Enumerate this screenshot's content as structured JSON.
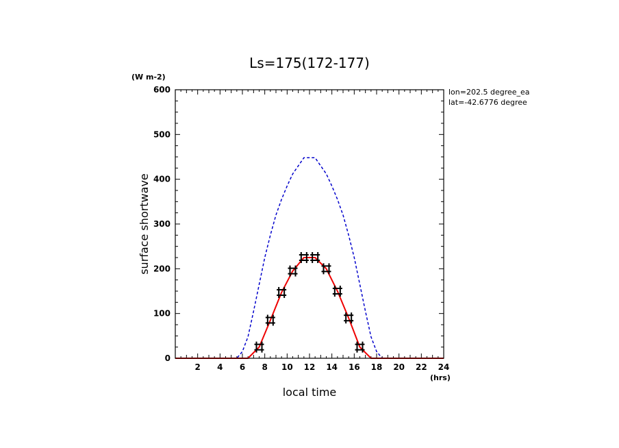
{
  "chart_data": {
    "type": "line",
    "title": "Ls=175(172-177)",
    "xlabel": "local time",
    "ylabel": "surface shortwave",
    "x_unit": "(hrs)",
    "y_unit": "(W m-2)",
    "xlim": [
      0,
      24
    ],
    "ylim": [
      0,
      600
    ],
    "x_ticks": [
      2,
      4,
      6,
      8,
      10,
      12,
      14,
      16,
      18,
      20,
      22,
      24
    ],
    "y_ticks": [
      0,
      100,
      200,
      300,
      400,
      500,
      600
    ],
    "x_tick_labels": [
      "2",
      "4",
      "6",
      "8",
      "10",
      "12",
      "14",
      "16",
      "18",
      "20",
      "22",
      "24"
    ],
    "y_tick_labels": [
      "0",
      "100",
      "200",
      "300",
      "400",
      "500",
      "600"
    ],
    "annotations": [
      "lon=202.5 degree_ea",
      "lat=-42.6776 degree"
    ],
    "series": [
      {
        "style": "dashed",
        "color": "#0000cc",
        "x": [
          0,
          5.5,
          6,
          6.5,
          7,
          7.5,
          8,
          8.5,
          9,
          9.5,
          10,
          10.5,
          11,
          11.5,
          12,
          12.5,
          13,
          13.5,
          14,
          14.5,
          15,
          15.5,
          16,
          16.5,
          17,
          17.5,
          18,
          18.5,
          24
        ],
        "y": [
          0,
          0,
          15,
          48,
          105,
          165,
          225,
          275,
          320,
          355,
          385,
          412,
          430,
          448,
          448,
          448,
          430,
          412,
          385,
          355,
          320,
          275,
          225,
          165,
          105,
          48,
          15,
          0,
          0
        ]
      },
      {
        "style": "solid",
        "color": "#ee0000",
        "x": [
          0,
          6.5,
          7.5,
          8.5,
          9.5,
          10.5,
          11.5,
          12.5,
          13.5,
          14.5,
          15.5,
          16.5,
          17.5,
          24
        ],
        "y": [
          0,
          0,
          25,
          85,
          147,
          195,
          225,
          225,
          200,
          150,
          90,
          25,
          0,
          0
        ]
      },
      {
        "style": "markers",
        "color": "#000000",
        "x": [
          7.5,
          8.5,
          9.5,
          10.5,
          11.5,
          12.5,
          13.5,
          14.5,
          15.5,
          16.5
        ],
        "y": [
          25,
          85,
          147,
          195,
          225,
          225,
          200,
          150,
          90,
          25
        ]
      }
    ]
  }
}
